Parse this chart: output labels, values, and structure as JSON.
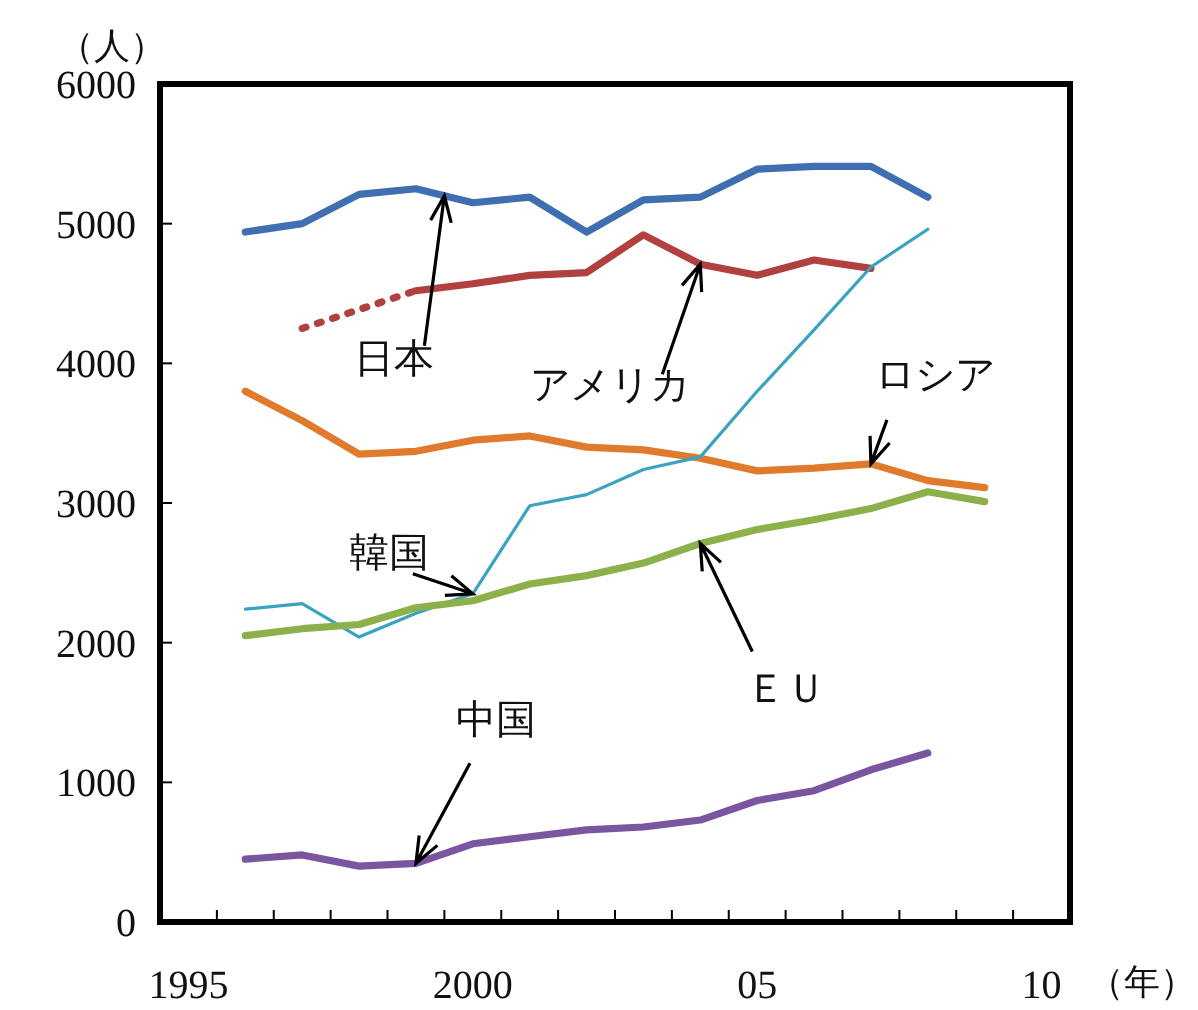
{
  "chart_data": {
    "type": "line",
    "ylabel": "（人）",
    "xlabel": "（年）",
    "xlim": [
      1994.5,
      2010.5
    ],
    "ylim": [
      0,
      6000
    ],
    "yticks": [
      0,
      1000,
      2000,
      3000,
      4000,
      5000,
      6000
    ],
    "xticks": [
      {
        "value": 1995,
        "label": "1995"
      },
      {
        "value": 2000,
        "label": "2000"
      },
      {
        "value": 2005,
        "label": "05"
      },
      {
        "value": 2010,
        "label": "10"
      },
      {
        "value": 1995.5,
        "label": null
      },
      {
        "value": 1996.5,
        "label": null
      },
      {
        "value": 1997.5,
        "label": null
      },
      {
        "value": 1998.5,
        "label": null
      },
      {
        "value": 1999.5,
        "label": null
      },
      {
        "value": 2000.5,
        "label": null
      },
      {
        "value": 2001.5,
        "label": null
      },
      {
        "value": 2002.5,
        "label": null
      },
      {
        "value": 2003.5,
        "label": null
      },
      {
        "value": 2004.5,
        "label": null
      },
      {
        "value": 2005.5,
        "label": null
      },
      {
        "value": 2006.5,
        "label": null
      },
      {
        "value": 2007.5,
        "label": null
      },
      {
        "value": 2008.5,
        "label": null
      },
      {
        "value": 2009.5,
        "label": null
      }
    ],
    "series": [
      {
        "name": "日本",
        "color": "#3f6fb0",
        "x": [
          1996,
          1997,
          1998,
          1999,
          2000,
          2001,
          2002,
          2003,
          2004,
          2005,
          2006,
          2007,
          2008
        ],
        "values": [
          4940,
          5000,
          5210,
          5250,
          5150,
          5190,
          4940,
          5170,
          5190,
          5390,
          5410,
          5410,
          5190
        ]
      },
      {
        "name": "アメリカ",
        "color": "#b0413e",
        "x": [
          1999,
          2000,
          2001,
          2002,
          2003,
          2004,
          2005,
          2006,
          2007
        ],
        "values": [
          4520,
          4570,
          4630,
          4650,
          4920,
          4710,
          4630,
          4740,
          4680
        ]
      },
      {
        "color": "#b0413e",
        "line_style": "dotted",
        "x": [
          1997,
          1999
        ],
        "values": [
          4250,
          4520
        ]
      },
      {
        "name": "ロシア",
        "color": "#e07b2d",
        "x": [
          1996,
          1997,
          1998,
          1999,
          2000,
          2001,
          2002,
          2003,
          2004,
          2005,
          2006,
          2007,
          2008,
          2009
        ],
        "values": [
          3800,
          3590,
          3350,
          3370,
          3450,
          3480,
          3400,
          3380,
          3320,
          3230,
          3250,
          3280,
          3160,
          3110
        ]
      },
      {
        "name": "韓国",
        "color": "#3aa3c0",
        "x": [
          1996,
          1997,
          1998,
          1999,
          2000,
          2001,
          2002,
          2003,
          2004,
          2005,
          2006,
          2007,
          2008
        ],
        "values": [
          2240,
          2280,
          2040,
          2210,
          2350,
          2980,
          3060,
          3240,
          3330,
          3800,
          4240,
          4690,
          4960
        ]
      },
      {
        "name": "ＥＵ",
        "color": "#8cb04a",
        "x": [
          1996,
          1997,
          1998,
          1999,
          2000,
          2001,
          2002,
          2003,
          2004,
          2005,
          2006,
          2007,
          2008,
          2009
        ],
        "values": [
          2050,
          2100,
          2130,
          2250,
          2300,
          2420,
          2480,
          2570,
          2710,
          2810,
          2880,
          2960,
          3080,
          3010
        ]
      },
      {
        "name": "中国",
        "color": "#7a55a0",
        "x": [
          1996,
          1997,
          1998,
          1999,
          2000,
          2001,
          2002,
          2003,
          2004,
          2005,
          2006,
          2007,
          2008
        ],
        "values": [
          450,
          480,
          400,
          420,
          560,
          610,
          660,
          680,
          730,
          870,
          940,
          1090,
          1210
        ]
      }
    ]
  }
}
